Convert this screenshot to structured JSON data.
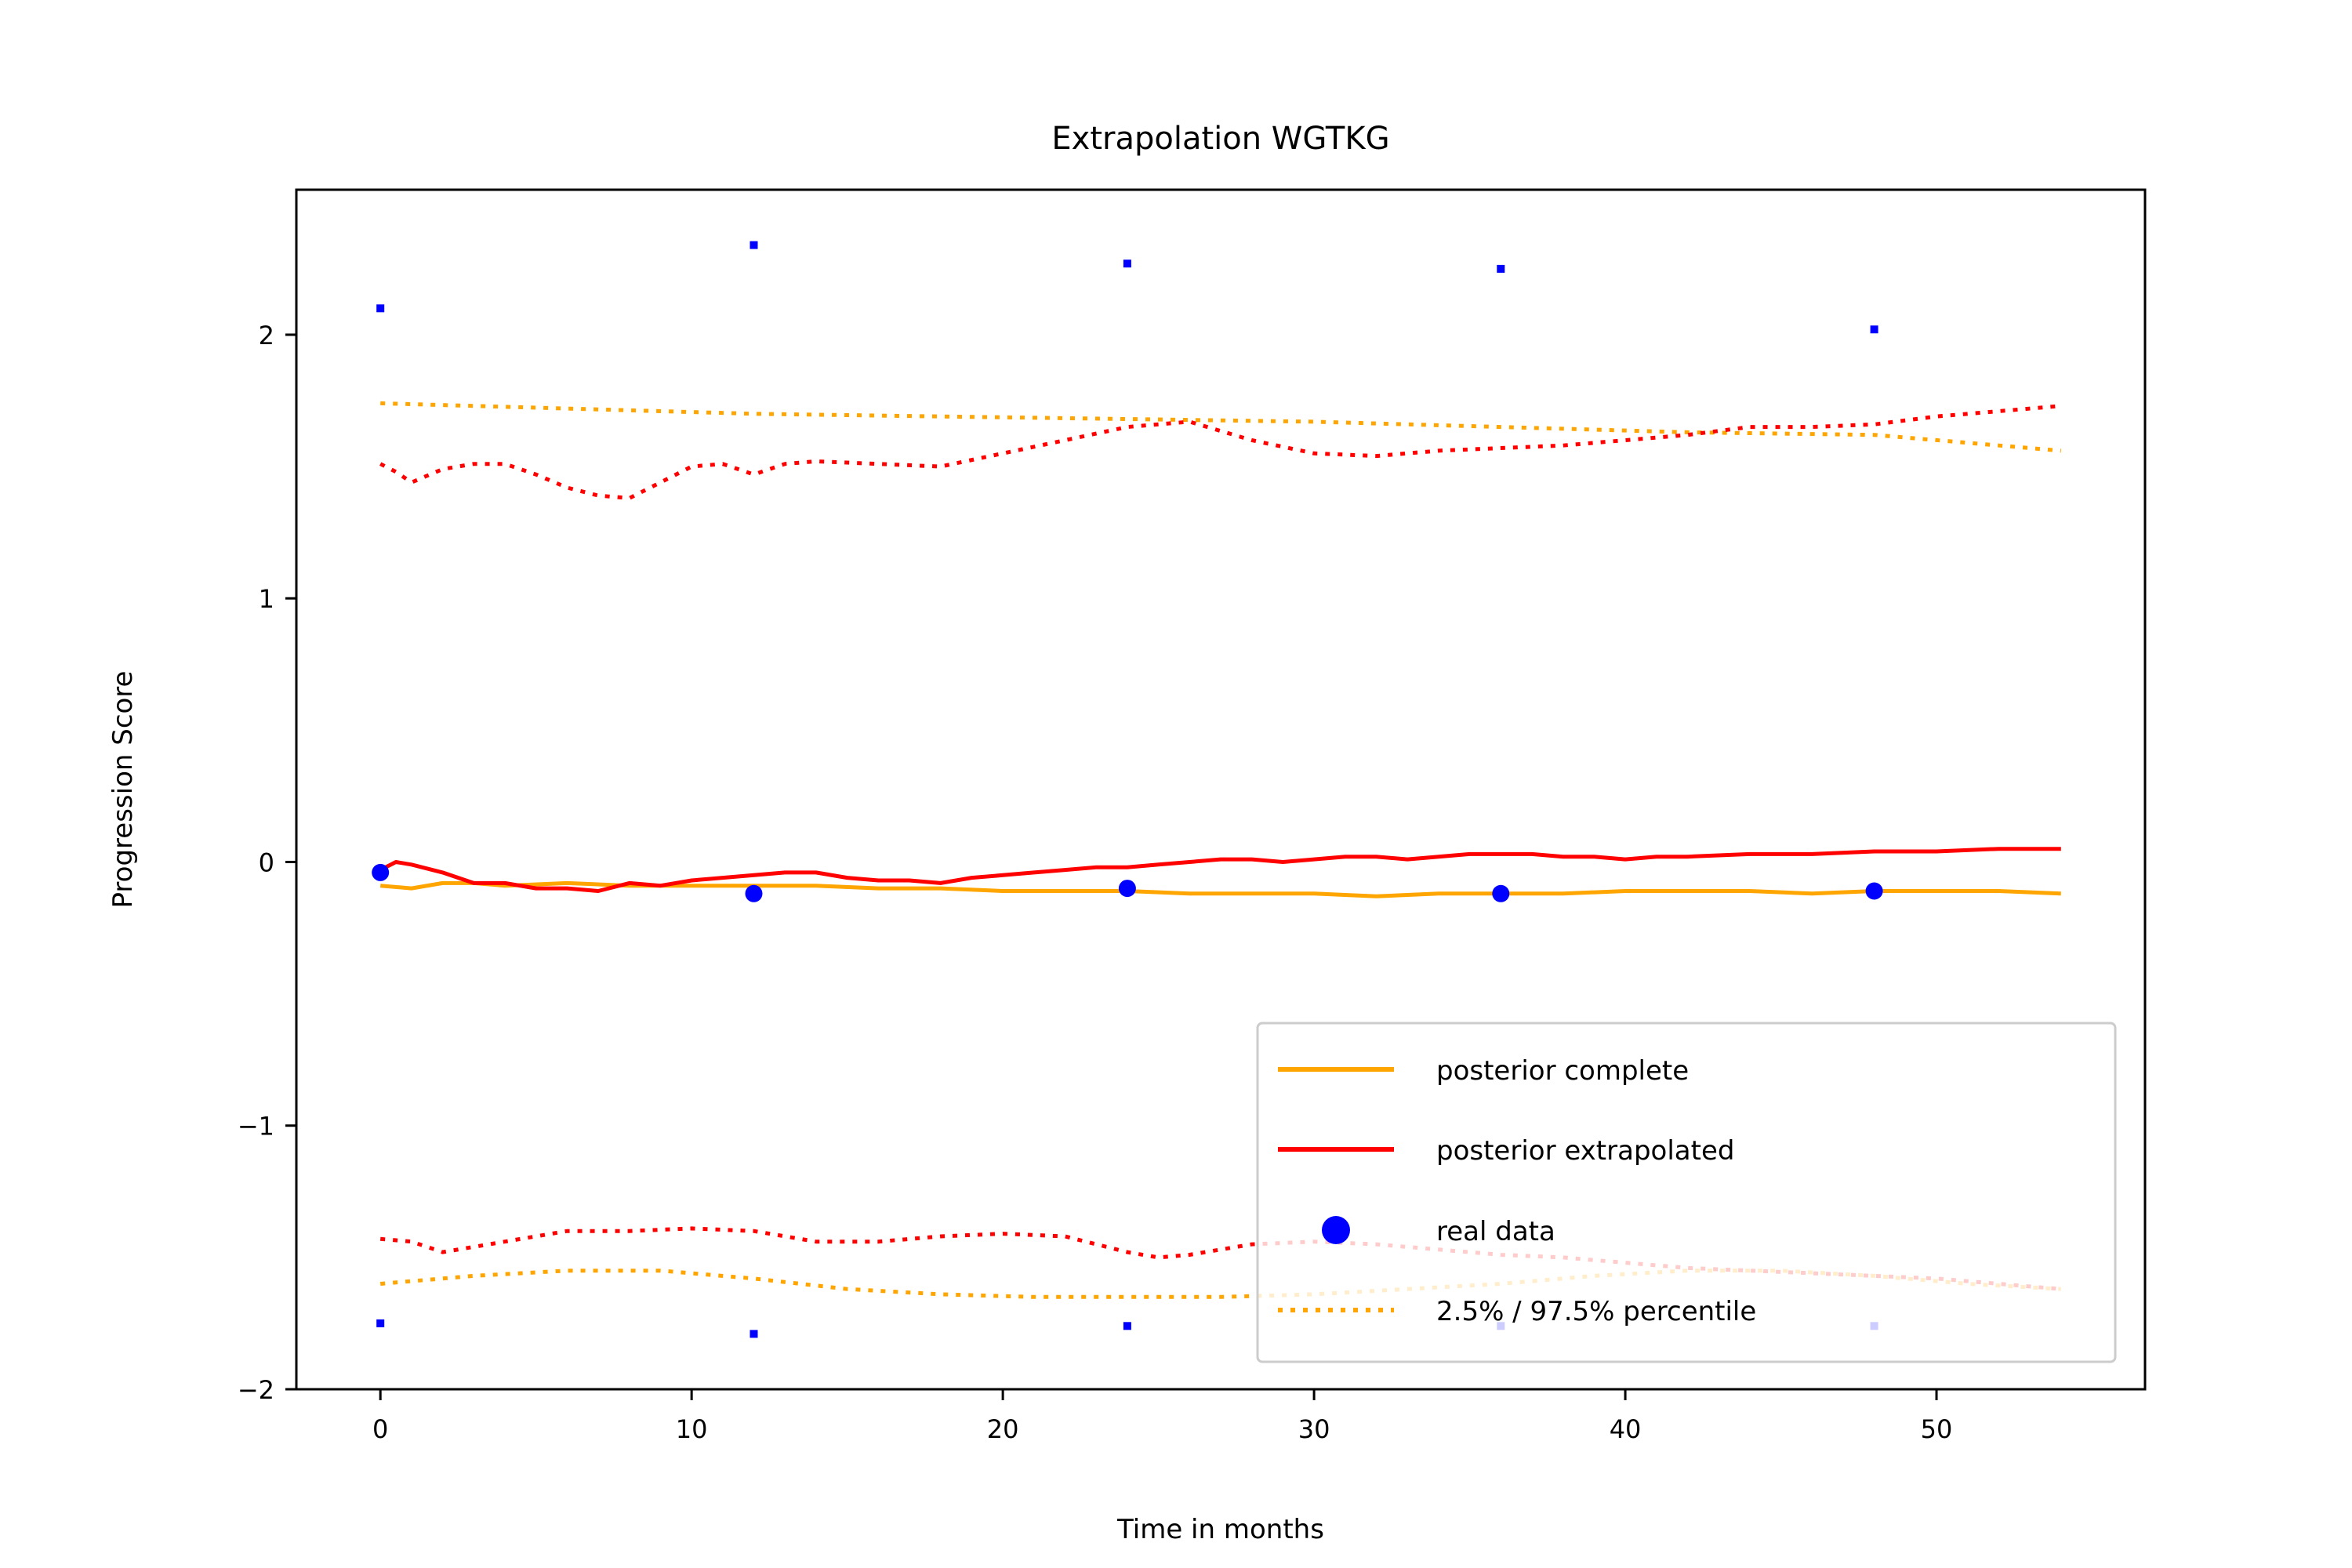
{
  "chart_data": {
    "type": "line",
    "title": "Extrapolation WGTKG",
    "xlabel": "Time in months",
    "ylabel": "Progression Score",
    "xlim": [
      -2.7,
      56.7
    ],
    "ylim": [
      -2.0,
      2.55
    ],
    "xticks": [
      0,
      10,
      20,
      30,
      40,
      50
    ],
    "yticks": [
      -2,
      -1,
      0,
      1,
      2
    ],
    "xtick_labels": [
      "0",
      "10",
      "20",
      "30",
      "40",
      "50"
    ],
    "ytick_labels": [
      "−2",
      "−1",
      "0",
      "1",
      "2"
    ],
    "grid": false,
    "legend_position": "lower-right",
    "legend": [
      {
        "label": "posterior complete",
        "color": "#FFA500",
        "style": "solid"
      },
      {
        "label": "posterior extrapolated",
        "color": "#FF0000",
        "style": "solid"
      },
      {
        "label": "real data",
        "color": "#0000FF",
        "style": "marker"
      },
      {
        "label": "2.5% / 97.5% percentile",
        "color": "#FFA500",
        "style": "dotted"
      }
    ],
    "series": [
      {
        "name": "posterior complete",
        "color": "#FFA500",
        "style": "solid",
        "x": [
          0,
          1,
          2,
          3,
          4,
          6,
          8,
          10,
          12,
          14,
          16,
          18,
          20,
          22,
          24,
          26,
          28,
          30,
          32,
          34,
          36,
          38,
          40,
          42,
          44,
          46,
          48,
          50,
          52,
          54
        ],
        "y": [
          -0.09,
          -0.1,
          -0.08,
          -0.08,
          -0.09,
          -0.08,
          -0.09,
          -0.09,
          -0.09,
          -0.09,
          -0.1,
          -0.1,
          -0.11,
          -0.11,
          -0.11,
          -0.12,
          -0.12,
          -0.12,
          -0.13,
          -0.12,
          -0.12,
          -0.12,
          -0.11,
          -0.11,
          -0.11,
          -0.12,
          -0.11,
          -0.11,
          -0.11,
          -0.12
        ]
      },
      {
        "name": "posterior extrapolated",
        "color": "#FF0000",
        "style": "solid",
        "x": [
          0,
          0.5,
          1,
          2,
          3,
          4,
          5,
          6,
          7,
          8,
          9,
          10,
          11,
          12,
          13,
          14,
          15,
          16,
          17,
          18,
          19,
          20,
          21,
          22,
          23,
          24,
          25,
          26,
          27,
          28,
          29,
          30,
          31,
          32,
          33,
          34,
          35,
          36,
          37,
          38,
          39,
          40,
          41,
          42,
          44,
          46,
          48,
          50,
          52,
          54
        ],
        "y": [
          -0.03,
          0.0,
          -0.01,
          -0.04,
          -0.08,
          -0.08,
          -0.1,
          -0.1,
          -0.11,
          -0.08,
          -0.09,
          -0.07,
          -0.06,
          -0.05,
          -0.04,
          -0.04,
          -0.06,
          -0.07,
          -0.07,
          -0.08,
          -0.06,
          -0.05,
          -0.04,
          -0.03,
          -0.02,
          -0.02,
          -0.01,
          0.0,
          0.01,
          0.01,
          0.0,
          0.01,
          0.02,
          0.02,
          0.01,
          0.02,
          0.03,
          0.03,
          0.03,
          0.02,
          0.02,
          0.01,
          0.02,
          0.02,
          0.03,
          0.03,
          0.04,
          0.04,
          0.05,
          0.05
        ]
      },
      {
        "name": "posterior complete 97.5%",
        "color": "#FFA500",
        "style": "dotted",
        "x": [
          0,
          6,
          12,
          18,
          24,
          30,
          36,
          42,
          48,
          54
        ],
        "y": [
          1.74,
          1.72,
          1.7,
          1.69,
          1.68,
          1.67,
          1.65,
          1.63,
          1.62,
          1.56
        ]
      },
      {
        "name": "posterior complete 2.5%",
        "color": "#FFA500",
        "style": "dotted",
        "x": [
          0,
          3,
          6,
          9,
          12,
          15,
          18,
          21,
          24,
          27,
          30,
          33,
          36,
          39,
          42,
          45,
          48,
          51,
          54
        ],
        "y": [
          -1.6,
          -1.57,
          -1.55,
          -1.55,
          -1.58,
          -1.62,
          -1.64,
          -1.65,
          -1.65,
          -1.65,
          -1.64,
          -1.62,
          -1.6,
          -1.57,
          -1.55,
          -1.55,
          -1.57,
          -1.6,
          -1.62
        ]
      },
      {
        "name": "posterior extrapolated 97.5%",
        "color": "#FF0000",
        "style": "dotted",
        "x": [
          0,
          0.5,
          1,
          2,
          3,
          4,
          5,
          6,
          7,
          8,
          9,
          10,
          11,
          12,
          13,
          14,
          16,
          18,
          20,
          22,
          24,
          26,
          28,
          30,
          32,
          34,
          36,
          38,
          40,
          42,
          44,
          46,
          48,
          50,
          52,
          54
        ],
        "y": [
          1.51,
          1.48,
          1.44,
          1.49,
          1.51,
          1.51,
          1.47,
          1.42,
          1.39,
          1.38,
          1.44,
          1.5,
          1.51,
          1.47,
          1.51,
          1.52,
          1.51,
          1.5,
          1.55,
          1.6,
          1.65,
          1.67,
          1.6,
          1.55,
          1.54,
          1.56,
          1.57,
          1.58,
          1.6,
          1.62,
          1.65,
          1.65,
          1.66,
          1.69,
          1.71,
          1.73
        ]
      },
      {
        "name": "posterior extrapolated 2.5%",
        "color": "#FF0000",
        "style": "dotted",
        "x": [
          0,
          1,
          2,
          4,
          6,
          8,
          10,
          12,
          14,
          16,
          18,
          20,
          22,
          24,
          25,
          26,
          28,
          30,
          32,
          34,
          36,
          38,
          40,
          42,
          44,
          46,
          48,
          50,
          52,
          54
        ],
        "y": [
          -1.43,
          -1.44,
          -1.48,
          -1.44,
          -1.4,
          -1.4,
          -1.39,
          -1.4,
          -1.44,
          -1.44,
          -1.42,
          -1.41,
          -1.42,
          -1.48,
          -1.5,
          -1.49,
          -1.45,
          -1.44,
          -1.45,
          -1.47,
          -1.49,
          -1.5,
          -1.52,
          -1.54,
          -1.55,
          -1.56,
          -1.57,
          -1.58,
          -1.6,
          -1.62
        ]
      }
    ],
    "real_data": {
      "name": "real data",
      "color": "#0000FF",
      "x": [
        0,
        12,
        24,
        36,
        48
      ],
      "y": [
        -0.04,
        -0.12,
        -0.1,
        -0.12,
        -0.11
      ]
    },
    "real_data_bounds": {
      "color": "#0000FF",
      "x": [
        0,
        12,
        24,
        36,
        48,
        0,
        12,
        24,
        36,
        48
      ],
      "y": [
        2.1,
        2.34,
        2.27,
        2.25,
        2.02,
        -1.75,
        -1.79,
        -1.76,
        -1.76,
        -1.76
      ]
    }
  }
}
